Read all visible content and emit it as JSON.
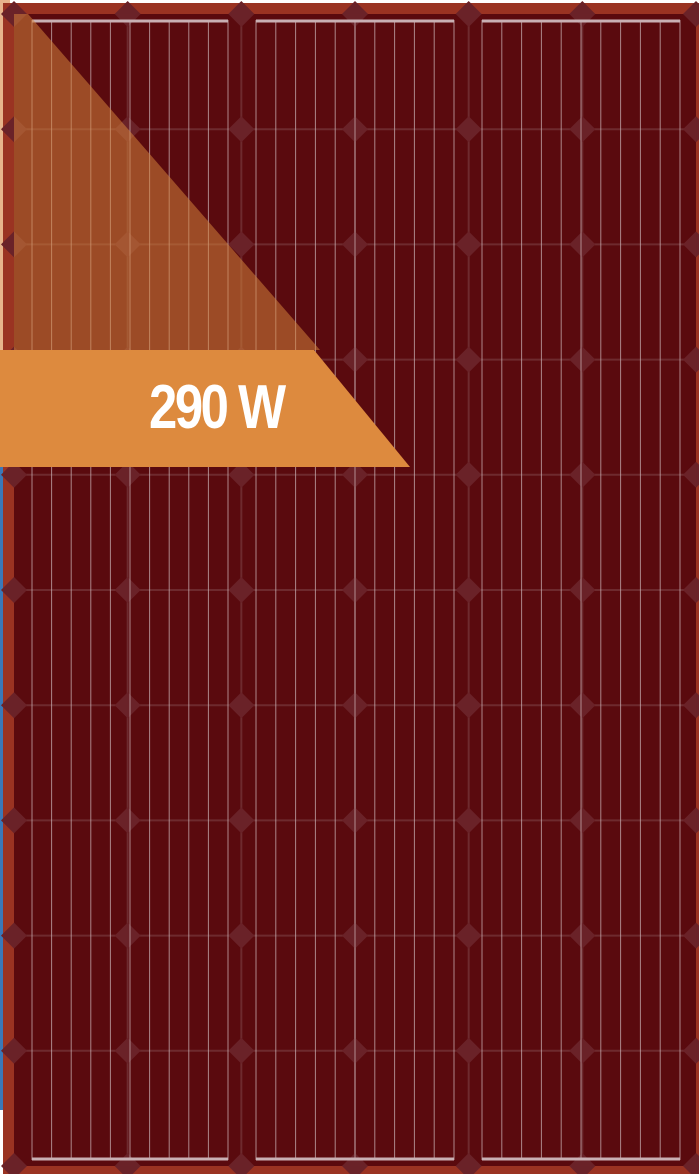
{
  "panel": {
    "colors": {
      "frame": "#9a3322",
      "frame_inner": "#7a2418",
      "cell": "#5a0a0e",
      "cell_grid": "#6e2a2e",
      "cell_diamond": "#6a2228",
      "busbar": "#c9b0b4",
      "side_strip": "#3a78b8",
      "corner_shade": "#d4813a"
    }
  },
  "badge": {
    "label": "290 W",
    "color": "#dd8a3e",
    "text_color": "#ffffff"
  }
}
